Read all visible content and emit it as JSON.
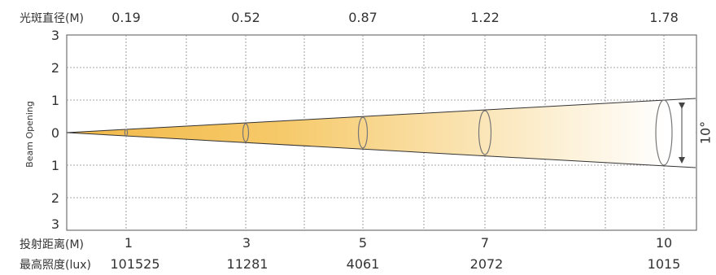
{
  "header": {
    "diameter_label": "光斑直径(M)",
    "diameters": [
      "0.19",
      "0.52",
      "0.87",
      "1.22",
      "1.78"
    ]
  },
  "y_axis": {
    "title": "Beam Opening",
    "ticks": [
      "3",
      "2",
      "1",
      "0",
      "1",
      "2",
      "3"
    ]
  },
  "footer": {
    "distance_label": "投射距离(M)",
    "distances": [
      "1",
      "3",
      "5",
      "7",
      "10"
    ],
    "lux_label": "最高照度(lux)",
    "lux_values": [
      "101525",
      "11281",
      "4061",
      "2072",
      "1015"
    ]
  },
  "beam": {
    "angle_label": "10°",
    "color_near": "#f2b94a",
    "color_far": "#ffffff"
  }
}
